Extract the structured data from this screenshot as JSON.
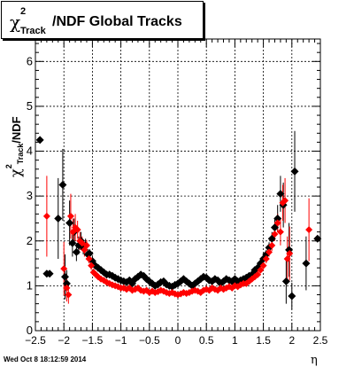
{
  "title": {
    "chi": "χ",
    "sup": "2",
    "sub": "Track",
    "rest": "/NDF  Global Tracks"
  },
  "ylabel": {
    "chi": "χ",
    "sup": "2",
    "sub": "Track",
    "rest": "/NDF"
  },
  "xlabel": "η",
  "timestamp": "Wed Oct  8 18:12:59 2014",
  "colors": {
    "series_black": "#000000",
    "series_red": "#ff0000",
    "grid": "#000000",
    "background": "#ffffff"
  },
  "chart_data": {
    "type": "scatter",
    "title": "χ²Track/NDF  Global Tracks",
    "xlabel": "η",
    "ylabel": "χ²Track/NDF",
    "xlim": [
      -2.5,
      2.5
    ],
    "ylim": [
      0,
      6.5
    ],
    "grid": true,
    "x_ticks": [
      -2.5,
      -2,
      -1.5,
      -1,
      -0.5,
      0,
      0.5,
      1,
      1.5,
      2,
      2.5
    ],
    "x_tick_labels": [
      "−2.5",
      "−2",
      "−1.5",
      "−1",
      "−0.5",
      "0",
      "0.5",
      "1",
      "1.5",
      "2",
      "2.5"
    ],
    "y_ticks": [
      0,
      1,
      2,
      3,
      4,
      5,
      6
    ],
    "y_tick_labels": [
      "0",
      "1",
      "2",
      "3",
      "4",
      "5",
      "6"
    ],
    "series": [
      {
        "color": "#000000",
        "marker": "diamond",
        "points": [
          [
            -2.42,
            4.25,
            0
          ],
          [
            -2.3,
            1.27,
            0
          ],
          [
            -2.25,
            1.27,
            0
          ],
          [
            -2.1,
            2.5,
            0.9
          ],
          [
            -2.02,
            3.25,
            0.8
          ],
          [
            -1.98,
            1.2,
            0.5
          ],
          [
            -1.95,
            1.05,
            0.3
          ],
          [
            -1.9,
            2.4,
            0.5
          ],
          [
            -1.85,
            1.95,
            0.3
          ],
          [
            -1.82,
            2.2,
            0.3
          ],
          [
            -1.78,
            1.75,
            0.2
          ],
          [
            -1.74,
            1.9,
            0.2
          ],
          [
            -1.7,
            2.0,
            0.2
          ],
          [
            -1.66,
            1.85,
            0.15
          ],
          [
            -1.62,
            1.9,
            0.15
          ],
          [
            -1.58,
            1.7,
            0.12
          ],
          [
            -1.55,
            1.72,
            0.1
          ],
          [
            -1.5,
            1.55,
            0.1
          ],
          [
            -1.45,
            1.45,
            0.08
          ],
          [
            -1.4,
            1.4,
            0.06
          ],
          [
            -1.35,
            1.35,
            0.05
          ],
          [
            -1.3,
            1.3,
            0.05
          ],
          [
            -1.25,
            1.25,
            0.04
          ],
          [
            -1.2,
            1.25,
            0.04
          ],
          [
            -1.15,
            1.22,
            0.03
          ],
          [
            -1.1,
            1.18,
            0.03
          ],
          [
            -1.05,
            1.15,
            0.03
          ],
          [
            -1.0,
            1.12,
            0.03
          ],
          [
            -0.95,
            1.1,
            0.03
          ],
          [
            -0.9,
            1.08,
            0.02
          ],
          [
            -0.85,
            1.12,
            0.02
          ],
          [
            -0.8,
            1.05,
            0.02
          ],
          [
            -0.75,
            1.15,
            0.02
          ],
          [
            -0.7,
            1.2,
            0.02
          ],
          [
            -0.65,
            1.25,
            0.02
          ],
          [
            -0.6,
            1.22,
            0.02
          ],
          [
            -0.55,
            1.15,
            0.02
          ],
          [
            -0.5,
            1.1,
            0.02
          ],
          [
            -0.45,
            1.05,
            0.02
          ],
          [
            -0.4,
            1.0,
            0.02
          ],
          [
            -0.35,
            1.03,
            0.02
          ],
          [
            -0.3,
            1.08,
            0.02
          ],
          [
            -0.25,
            1.1,
            0.02
          ],
          [
            -0.2,
            1.03,
            0.02
          ],
          [
            -0.15,
            1.0,
            0.02
          ],
          [
            -0.1,
            0.98,
            0.02
          ],
          [
            -0.05,
            1.02,
            0.02
          ],
          [
            0.0,
            1.05,
            0.02
          ],
          [
            0.05,
            1.1,
            0.02
          ],
          [
            0.1,
            1.15,
            0.02
          ],
          [
            0.15,
            1.1,
            0.02
          ],
          [
            0.2,
            1.05,
            0.02
          ],
          [
            0.25,
            1.0,
            0.02
          ],
          [
            0.3,
            1.05,
            0.02
          ],
          [
            0.35,
            1.1,
            0.02
          ],
          [
            0.4,
            1.15,
            0.02
          ],
          [
            0.45,
            1.2,
            0.02
          ],
          [
            0.5,
            1.18,
            0.02
          ],
          [
            0.55,
            1.12,
            0.02
          ],
          [
            0.6,
            1.1,
            0.02
          ],
          [
            0.65,
            1.15,
            0.02
          ],
          [
            0.7,
            1.12,
            0.02
          ],
          [
            0.75,
            1.05,
            0.02
          ],
          [
            0.8,
            1.1,
            0.02
          ],
          [
            0.85,
            1.15,
            0.02
          ],
          [
            0.9,
            1.12,
            0.02
          ],
          [
            0.95,
            1.1,
            0.03
          ],
          [
            1.0,
            1.15,
            0.03
          ],
          [
            1.05,
            1.1,
            0.03
          ],
          [
            1.1,
            1.12,
            0.03
          ],
          [
            1.15,
            1.15,
            0.03
          ],
          [
            1.2,
            1.18,
            0.04
          ],
          [
            1.25,
            1.22,
            0.04
          ],
          [
            1.3,
            1.25,
            0.05
          ],
          [
            1.35,
            1.35,
            0.05
          ],
          [
            1.4,
            1.4,
            0.06
          ],
          [
            1.45,
            1.5,
            0.08
          ],
          [
            1.5,
            1.6,
            0.1
          ],
          [
            1.55,
            1.7,
            0.1
          ],
          [
            1.6,
            1.85,
            0.12
          ],
          [
            1.65,
            2.05,
            0.15
          ],
          [
            1.7,
            2.3,
            0.2
          ],
          [
            1.75,
            2.5,
            0.3
          ],
          [
            1.8,
            3.05,
            0.4
          ],
          [
            1.85,
            2.8,
            0.5
          ],
          [
            1.9,
            1.1,
            0.5
          ],
          [
            1.95,
            1.8,
            0.6
          ],
          [
            2.0,
            0.77,
            0.3
          ],
          [
            2.05,
            3.55,
            0.9
          ],
          [
            2.25,
            1.5,
            0.6
          ],
          [
            2.45,
            2.05,
            0
          ]
        ]
      },
      {
        "color": "#ff0000",
        "marker": "circle",
        "points": [
          [
            -2.3,
            2.55,
            0.9
          ],
          [
            -2.0,
            1.38,
            0.6
          ],
          [
            -1.95,
            0.95,
            0.3
          ],
          [
            -1.92,
            0.8,
            0.2
          ],
          [
            -1.88,
            2.55,
            0.5
          ],
          [
            -1.84,
            2.2,
            0.3
          ],
          [
            -1.8,
            2.3,
            0.3
          ],
          [
            -1.76,
            2.25,
            0.2
          ],
          [
            -1.72,
            2.0,
            0.2
          ],
          [
            -1.68,
            1.95,
            0.15
          ],
          [
            -1.64,
            1.8,
            0.15
          ],
          [
            -1.6,
            1.9,
            0.12
          ],
          [
            -1.56,
            1.6,
            0.1
          ],
          [
            -1.52,
            1.45,
            0.1
          ],
          [
            -1.48,
            1.3,
            0.08
          ],
          [
            -1.44,
            1.25,
            0.06
          ],
          [
            -1.4,
            1.2,
            0.05
          ],
          [
            -1.35,
            1.15,
            0.05
          ],
          [
            -1.3,
            1.12,
            0.04
          ],
          [
            -1.25,
            1.08,
            0.04
          ],
          [
            -1.2,
            1.05,
            0.03
          ],
          [
            -1.15,
            1.02,
            0.03
          ],
          [
            -1.1,
            1.0,
            0.03
          ],
          [
            -1.05,
            0.98,
            0.03
          ],
          [
            -1.0,
            0.95,
            0.02
          ],
          [
            -0.95,
            0.95,
            0.02
          ],
          [
            -0.9,
            0.92,
            0.02
          ],
          [
            -0.85,
            0.95,
            0.02
          ],
          [
            -0.8,
            0.9,
            0.02
          ],
          [
            -0.75,
            0.92,
            0.02
          ],
          [
            -0.7,
            0.95,
            0.02
          ],
          [
            -0.65,
            0.9,
            0.02
          ],
          [
            -0.6,
            0.88,
            0.02
          ],
          [
            -0.55,
            0.9,
            0.02
          ],
          [
            -0.5,
            0.85,
            0.02
          ],
          [
            -0.45,
            0.88,
            0.02
          ],
          [
            -0.4,
            0.85,
            0.02
          ],
          [
            -0.35,
            0.87,
            0.02
          ],
          [
            -0.3,
            0.9,
            0.02
          ],
          [
            -0.25,
            0.88,
            0.02
          ],
          [
            -0.2,
            0.85,
            0.02
          ],
          [
            -0.15,
            0.83,
            0.02
          ],
          [
            -0.1,
            0.85,
            0.02
          ],
          [
            -0.05,
            0.82,
            0.02
          ],
          [
            0.0,
            0.8,
            0.02
          ],
          [
            0.05,
            0.82,
            0.02
          ],
          [
            0.1,
            0.85,
            0.02
          ],
          [
            0.15,
            0.83,
            0.02
          ],
          [
            0.2,
            0.85,
            0.02
          ],
          [
            0.25,
            0.88,
            0.02
          ],
          [
            0.3,
            0.9,
            0.02
          ],
          [
            0.35,
            0.88,
            0.02
          ],
          [
            0.4,
            0.85,
            0.02
          ],
          [
            0.45,
            0.9,
            0.02
          ],
          [
            0.5,
            0.92,
            0.02
          ],
          [
            0.55,
            0.9,
            0.02
          ],
          [
            0.6,
            0.95,
            0.02
          ],
          [
            0.65,
            0.92,
            0.02
          ],
          [
            0.7,
            0.9,
            0.02
          ],
          [
            0.75,
            0.95,
            0.02
          ],
          [
            0.8,
            0.92,
            0.02
          ],
          [
            0.85,
            0.95,
            0.02
          ],
          [
            0.9,
            0.98,
            0.02
          ],
          [
            0.95,
            0.95,
            0.02
          ],
          [
            1.0,
            1.0,
            0.03
          ],
          [
            1.05,
            0.98,
            0.03
          ],
          [
            1.1,
            1.02,
            0.03
          ],
          [
            1.15,
            1.05,
            0.03
          ],
          [
            1.2,
            1.05,
            0.03
          ],
          [
            1.25,
            1.1,
            0.04
          ],
          [
            1.3,
            1.15,
            0.04
          ],
          [
            1.35,
            1.2,
            0.05
          ],
          [
            1.4,
            1.25,
            0.05
          ],
          [
            1.45,
            1.35,
            0.06
          ],
          [
            1.5,
            1.45,
            0.08
          ],
          [
            1.55,
            1.6,
            0.1
          ],
          [
            1.6,
            1.75,
            0.1
          ],
          [
            1.65,
            1.9,
            0.12
          ],
          [
            1.7,
            2.15,
            0.15
          ],
          [
            1.75,
            2.4,
            0.2
          ],
          [
            1.8,
            2.2,
            0.3
          ],
          [
            1.84,
            2.85,
            0.4
          ],
          [
            1.88,
            2.9,
            0.5
          ],
          [
            1.92,
            1.6,
            0.5
          ],
          [
            1.96,
            1.72,
            0.6
          ],
          [
            2.3,
            2.25,
            0.7
          ]
        ]
      }
    ]
  }
}
